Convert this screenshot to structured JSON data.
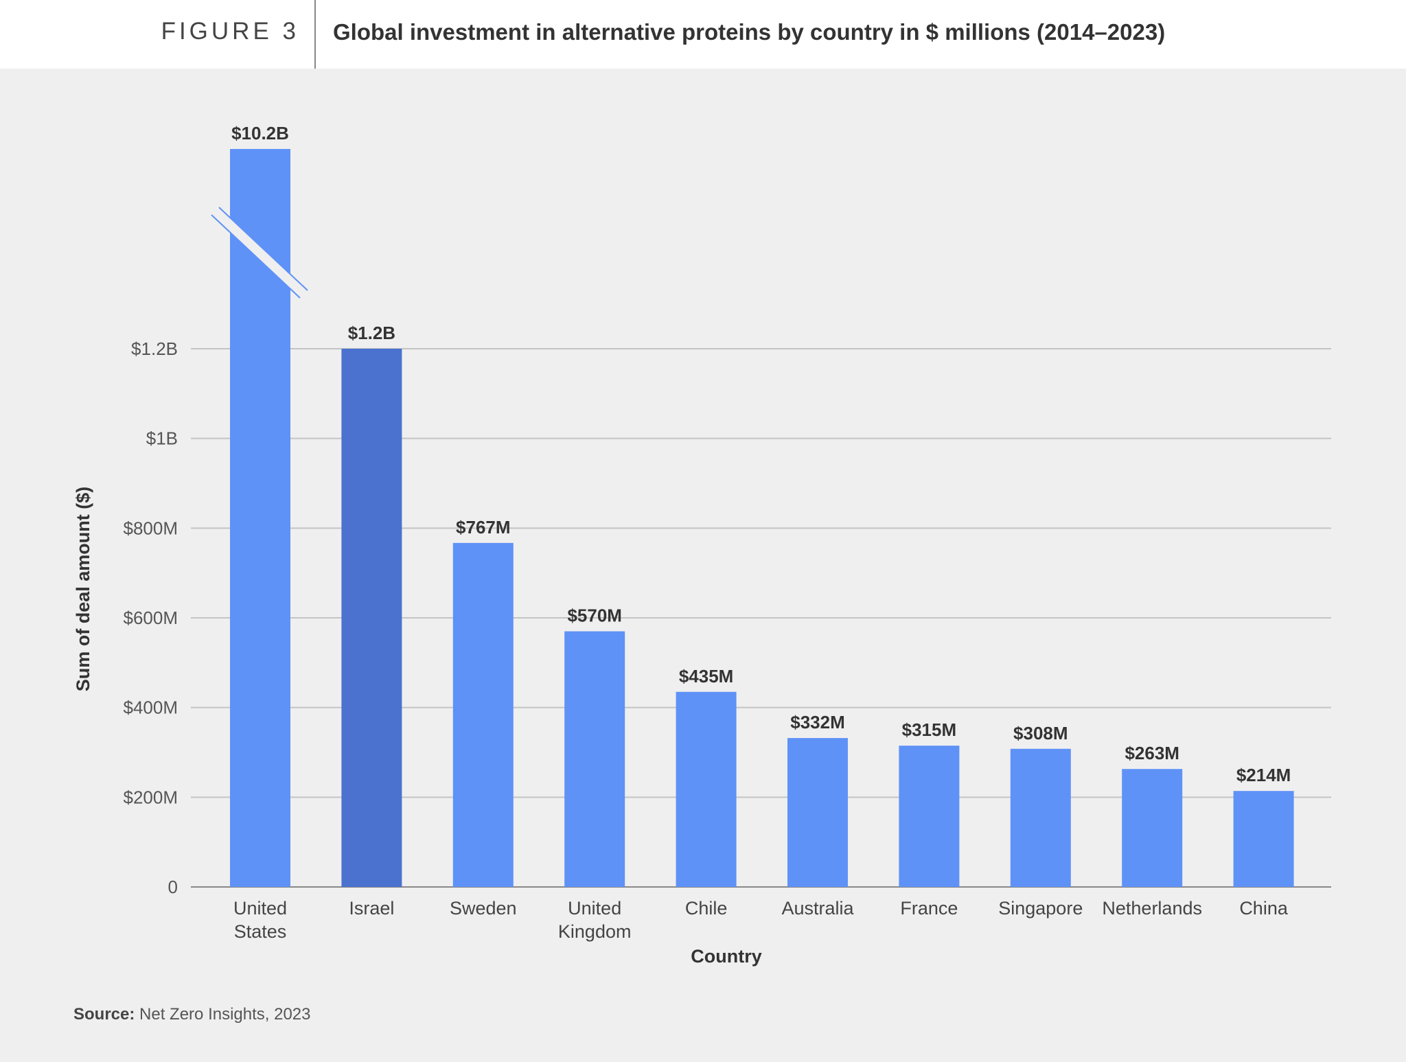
{
  "header": {
    "figure_label": "FIGURE 3",
    "title": "Global investment in alternative proteins by country in $ millions (2014–2023)"
  },
  "chart_data": {
    "type": "bar",
    "title": "Global investment in alternative proteins by country in $ millions (2014–2023)",
    "xlabel": "Country",
    "ylabel": "Sum of deal amount ($)",
    "categories": [
      [
        "United",
        "States"
      ],
      [
        "Israel"
      ],
      [
        "Sweden"
      ],
      [
        "United",
        "Kingdom"
      ],
      [
        "Chile"
      ],
      [
        "Australia"
      ],
      [
        "France"
      ],
      [
        "Singapore"
      ],
      [
        "Netherlands"
      ],
      [
        "China"
      ]
    ],
    "values": [
      10200,
      1200,
      767,
      570,
      435,
      332,
      315,
      308,
      263,
      214
    ],
    "data_labels": [
      "$10.2B",
      "$1.2B",
      "$767M",
      "$570M",
      "$435M",
      "$332M",
      "$315M",
      "$308M",
      "$263M",
      "$214M"
    ],
    "yticks": [
      0,
      200,
      400,
      600,
      800,
      1000,
      1200
    ],
    "ytick_labels": [
      "0",
      "$200M",
      "$400M",
      "$600M",
      "$800M",
      "$1B",
      "$1.2B"
    ],
    "ylim": [
      0,
      1200
    ],
    "axis_break": "United States bar truncated",
    "grid": true,
    "colors": {
      "default": "#5f92f7",
      "highlight": "#4a72ce",
      "highlight_category": "Israel"
    }
  },
  "source": {
    "label": "Source:",
    "text": "Net Zero Insights, 2023"
  }
}
